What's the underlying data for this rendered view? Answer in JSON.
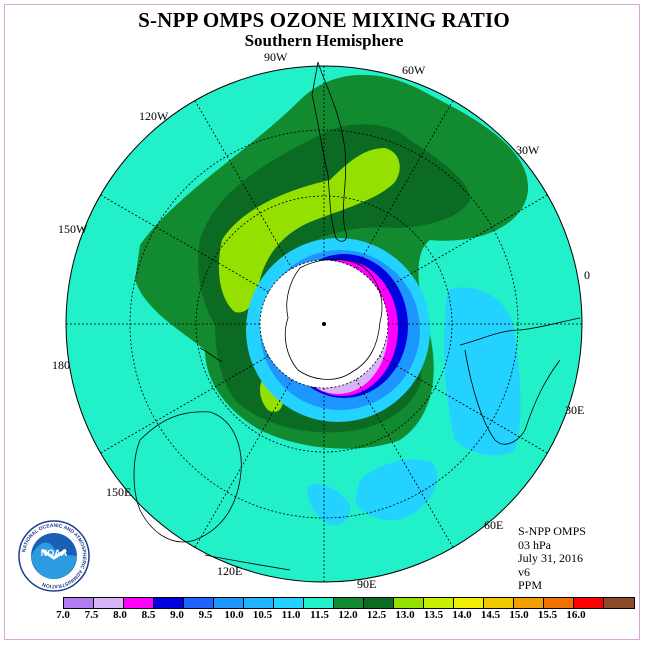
{
  "header": {
    "title": "S-NPP OMPS OZONE MIXING RATIO",
    "subtitle": "Southern Hemisphere"
  },
  "longitude_labels": [
    "90W",
    "60W",
    "120W",
    "30W",
    "150W",
    "0",
    "180",
    "30E",
    "150E",
    "60E",
    "120E",
    "90E"
  ],
  "info": {
    "satellite": "S-NPP OMPS",
    "level": "03 hPa",
    "date": "July 31, 2016",
    "version": "v6",
    "units": "PPM"
  },
  "legend": {
    "labels": [
      "7.0",
      "7.5",
      "8.0",
      "8.5",
      "9.0",
      "9.5",
      "10.0",
      "10.5",
      "11.0",
      "11.5",
      "12.0",
      "12.5",
      "13.0",
      "13.5",
      "14.0",
      "14.5",
      "15.0",
      "15.5",
      "16.0"
    ],
    "colors": [
      "#b07cf0",
      "#d7b4f5",
      "#ff00ff",
      "#0000e0",
      "#1e64ff",
      "#1e96ff",
      "#1eb4ff",
      "#23d2ff",
      "#22f0c8",
      "#118a30",
      "#0b6b22",
      "#94e000",
      "#c8f000",
      "#f0f000",
      "#f0c800",
      "#f0a000",
      "#f07000",
      "#ff0000",
      "#8b4a2a"
    ]
  },
  "logo": {
    "text": "NOAA",
    "ring_text": "NATIONAL OCEANIC AND ATMOSPHERIC ADMINISTRATION",
    "bottom_text": "U.S. DEPARTMENT OF COMMERCE"
  },
  "colors": {
    "background_field": "#22f0c8",
    "polar_night": "#ffffff",
    "frame": "#d9a8d9"
  }
}
